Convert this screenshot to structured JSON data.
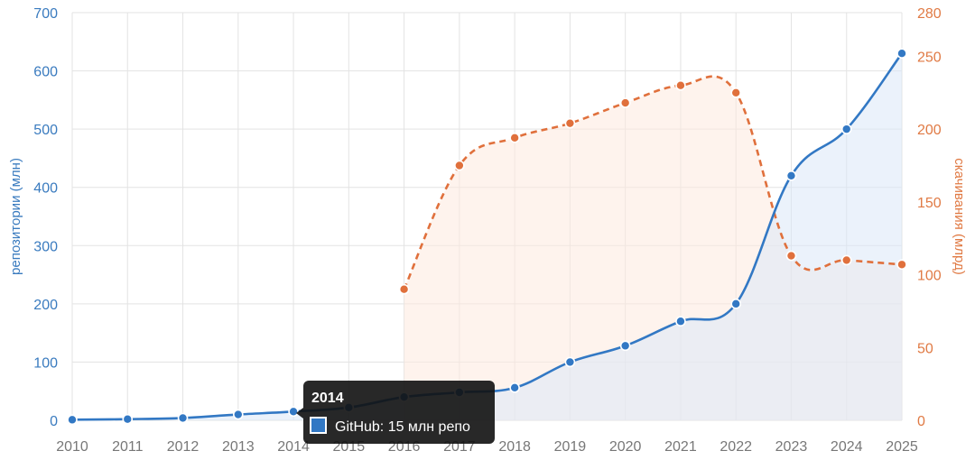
{
  "colors": {
    "series_github": "#3278c4",
    "series_downloads": "#e0703c",
    "grid": "#e3e3e3",
    "tooltip_bg": "#111111"
  },
  "chart_data": {
    "type": "line",
    "x": [
      "2010",
      "2011",
      "2012",
      "2013",
      "2014",
      "2015",
      "2016",
      "2017",
      "2018",
      "2019",
      "2020",
      "2021",
      "2022",
      "2023",
      "2024",
      "2025"
    ],
    "x_tick_labels": [
      "2010",
      "2011",
      "2012",
      "2013",
      "2014",
      "2015",
      "2016",
      "2017",
      "2018",
      "2019",
      "2020",
      "2021",
      "2022",
      "2023",
      "2024",
      "2025"
    ],
    "y_left": {
      "label": "репозитории (млн)",
      "range": [
        0,
        700
      ],
      "ticks": [
        "0",
        "100",
        "200",
        "300",
        "400",
        "500",
        "600",
        "700"
      ]
    },
    "y_right": {
      "label": "скачивания (млрд)",
      "range": [
        0,
        280
      ],
      "ticks": [
        "0",
        "50",
        "100",
        "150",
        "200",
        "250",
        "280"
      ]
    },
    "grid": true,
    "series": [
      {
        "axis": "left",
        "style": "solid",
        "values": [
          1,
          2,
          4,
          10,
          15,
          22,
          40,
          48,
          56,
          100,
          128,
          170,
          200,
          420,
          500,
          630
        ]
      },
      {
        "axis": "right",
        "style": "dashed",
        "values": [
          null,
          null,
          null,
          null,
          null,
          null,
          90,
          175,
          194,
          204,
          218,
          230,
          225,
          113,
          110,
          107
        ]
      }
    ],
    "tooltip": {
      "title": "2014",
      "text": "GitHub: 15 млн репо"
    }
  }
}
